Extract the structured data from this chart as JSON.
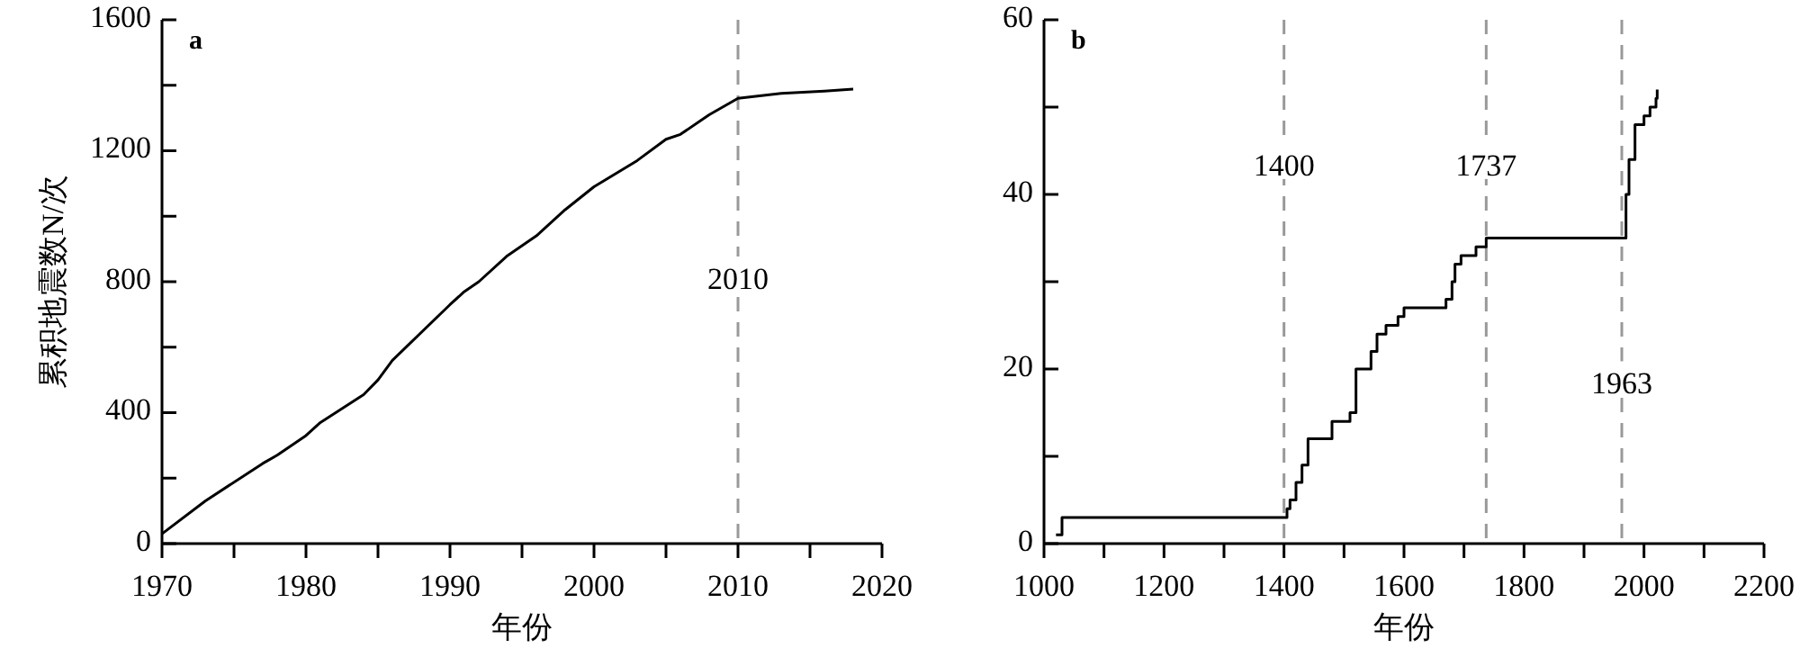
{
  "chart_data": [
    {
      "type": "line",
      "ylabel": "累积地震数N/次",
      "xlabel": "年份",
      "xlim": [
        1970,
        2020
      ],
      "xticks": [
        1970,
        {
          "value": 1975,
          "label": null
        },
        1980,
        {
          "value": 1985,
          "label": null
        },
        1990,
        {
          "value": 1995,
          "label": null
        },
        2000,
        {
          "value": 2005,
          "label": null
        },
        2010,
        {
          "value": 2015,
          "label": null
        },
        2020
      ],
      "ylim": [
        0,
        1600
      ],
      "yticks": [
        0,
        {
          "value": 200,
          "label": null
        },
        400,
        {
          "value": 600,
          "label": null
        },
        800,
        {
          "value": 1000,
          "label": null
        },
        1200,
        {
          "value": 1400,
          "label": null
        },
        1600
      ],
      "grid": false,
      "x": [
        1970,
        1973,
        1977,
        1978,
        1980,
        1981,
        1984,
        1985,
        1986,
        1990,
        1991,
        1992,
        1994,
        1996,
        1998,
        2000,
        2003,
        2005,
        2006,
        2008,
        2010,
        2013,
        2016,
        2018
      ],
      "series": [
        {
          "color": "#000000",
          "values": [
            30,
            130,
            245,
            270,
            330,
            370,
            455,
            500,
            560,
            730,
            770,
            800,
            880,
            940,
            1020,
            1090,
            1170,
            1235,
            1250,
            1310,
            1360,
            1375,
            1382,
            1388
          ]
        }
      ],
      "ref_lines": [
        {
          "axis": "x",
          "value": 2010,
          "color": "#999999",
          "line_style": "dashed"
        }
      ],
      "annotations": [
        "a",
        {
          "text": "2010",
          "x": 2010,
          "y": 800
        }
      ]
    },
    {
      "type": "step",
      "xlabel": "年份",
      "xlim": [
        1000,
        2200
      ],
      "xticks": [
        1000,
        {
          "value": 1100,
          "label": null
        },
        1200,
        {
          "value": 1300,
          "label": null
        },
        1400,
        {
          "value": 1500,
          "label": null
        },
        1600,
        {
          "value": 1700,
          "label": null
        },
        1800,
        {
          "value": 1900,
          "label": null
        },
        2000,
        {
          "value": 2100,
          "label": null
        },
        2200
      ],
      "ylim": [
        0,
        60
      ],
      "yticks": [
        0,
        {
          "value": 10,
          "label": null
        },
        20,
        {
          "value": 30,
          "label": null
        },
        40,
        {
          "value": 50,
          "label": null
        },
        60
      ],
      "grid": false,
      "x": [
        1020,
        1030,
        1400,
        1405,
        1410,
        1420,
        1430,
        1440,
        1480,
        1510,
        1520,
        1545,
        1555,
        1570,
        1590,
        1600,
        1660,
        1670,
        1680,
        1685,
        1695,
        1720,
        1737,
        1963,
        1970,
        1975,
        1985,
        2000,
        2010,
        2020,
        2022
      ],
      "series": [
        {
          "color": "#000000",
          "values": [
            1,
            3,
            3,
            4,
            5,
            7,
            9,
            12,
            14,
            15,
            20,
            22,
            24,
            25,
            26,
            27,
            27,
            28,
            30,
            32,
            33,
            34,
            35,
            35,
            40,
            44,
            48,
            49,
            50,
            51,
            52
          ]
        }
      ],
      "ref_lines": [
        {
          "axis": "x",
          "value": 1400,
          "color": "#999999",
          "line_style": "dashed"
        },
        {
          "axis": "x",
          "value": 1737,
          "color": "#999999",
          "line_style": "dashed"
        },
        {
          "axis": "x",
          "value": 1963,
          "color": "#999999",
          "line_style": "dashed"
        }
      ],
      "annotations": [
        "b",
        {
          "text": "1400",
          "x": 1400,
          "y": 43
        },
        {
          "text": "1737",
          "x": 1737,
          "y": 43
        },
        {
          "text": "1963",
          "x": 1963,
          "y": 18
        }
      ]
    }
  ]
}
